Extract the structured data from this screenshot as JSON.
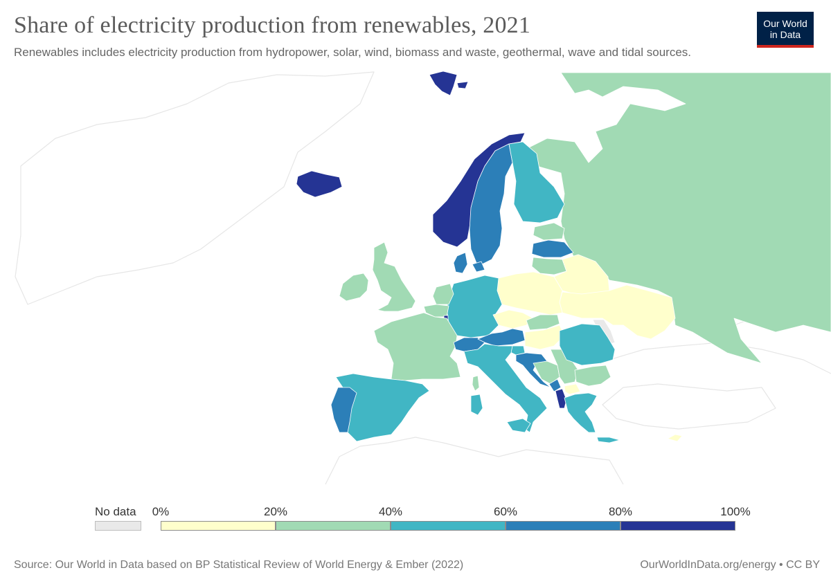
{
  "header": {
    "title": "Share of electricity production from renewables, 2021",
    "subtitle": "Renewables includes electricity production from hydropower, solar, wind, biomass and waste, geothermal, wave and tidal sources."
  },
  "logo": {
    "line1": "Our World",
    "line2": "in Data"
  },
  "legend": {
    "no_data_label": "No data",
    "ticks": [
      "0%",
      "20%",
      "40%",
      "60%",
      "80%",
      "100%"
    ],
    "bins": [
      {
        "from": 0,
        "to": 20,
        "color": "#ffffcc"
      },
      {
        "from": 20,
        "to": 40,
        "color": "#a1dab4"
      },
      {
        "from": 40,
        "to": 60,
        "color": "#41b6c4"
      },
      {
        "from": 60,
        "to": 80,
        "color": "#2c7fb8"
      },
      {
        "from": 80,
        "to": 100,
        "color": "#253494"
      }
    ],
    "no_data_color": "#e9e9e9"
  },
  "footer": {
    "source": "Source: Our World in Data based on BP Statistical Review of World Energy & Ember (2022)",
    "credit": "OurWorldInData.org/energy • CC BY"
  },
  "countries": [
    {
      "id": "svalbard",
      "bin": 4
    },
    {
      "id": "iceland",
      "bin": 4
    },
    {
      "id": "norway",
      "bin": 4
    },
    {
      "id": "sweden",
      "bin": 3
    },
    {
      "id": "finland",
      "bin": 2
    },
    {
      "id": "russia",
      "bin": 1
    },
    {
      "id": "estonia",
      "bin": 1
    },
    {
      "id": "latvia",
      "bin": 3
    },
    {
      "id": "lithuania",
      "bin": 1
    },
    {
      "id": "belarus",
      "bin": 0
    },
    {
      "id": "ukraine",
      "bin": 0
    },
    {
      "id": "moldova",
      "bin": "none"
    },
    {
      "id": "poland",
      "bin": 0
    },
    {
      "id": "germany",
      "bin": 2
    },
    {
      "id": "denmark",
      "bin": 3
    },
    {
      "id": "netherlands",
      "bin": 1
    },
    {
      "id": "belgium",
      "bin": 1
    },
    {
      "id": "luxembourg",
      "bin": 4
    },
    {
      "id": "france",
      "bin": 1
    },
    {
      "id": "uk",
      "bin": 1
    },
    {
      "id": "ireland",
      "bin": 1
    },
    {
      "id": "spain",
      "bin": 2
    },
    {
      "id": "portugal",
      "bin": 3
    },
    {
      "id": "switzerland",
      "bin": 3
    },
    {
      "id": "austria",
      "bin": 3
    },
    {
      "id": "czechia",
      "bin": 0
    },
    {
      "id": "slovakia",
      "bin": 1
    },
    {
      "id": "hungary",
      "bin": 0
    },
    {
      "id": "slovenia",
      "bin": 2
    },
    {
      "id": "croatia",
      "bin": 3
    },
    {
      "id": "bosnia",
      "bin": 1
    },
    {
      "id": "serbia",
      "bin": 1
    },
    {
      "id": "montenegro",
      "bin": 3
    },
    {
      "id": "albania",
      "bin": 4
    },
    {
      "id": "north-macedonia",
      "bin": 0
    },
    {
      "id": "greece",
      "bin": 2
    },
    {
      "id": "bulgaria",
      "bin": 1
    },
    {
      "id": "romania",
      "bin": 2
    },
    {
      "id": "italy",
      "bin": 2
    },
    {
      "id": "sicily",
      "bin": 2
    },
    {
      "id": "sardinia",
      "bin": 2
    },
    {
      "id": "corsica",
      "bin": 1
    },
    {
      "id": "crete",
      "bin": 2
    },
    {
      "id": "cyprus",
      "bin": 0
    }
  ]
}
